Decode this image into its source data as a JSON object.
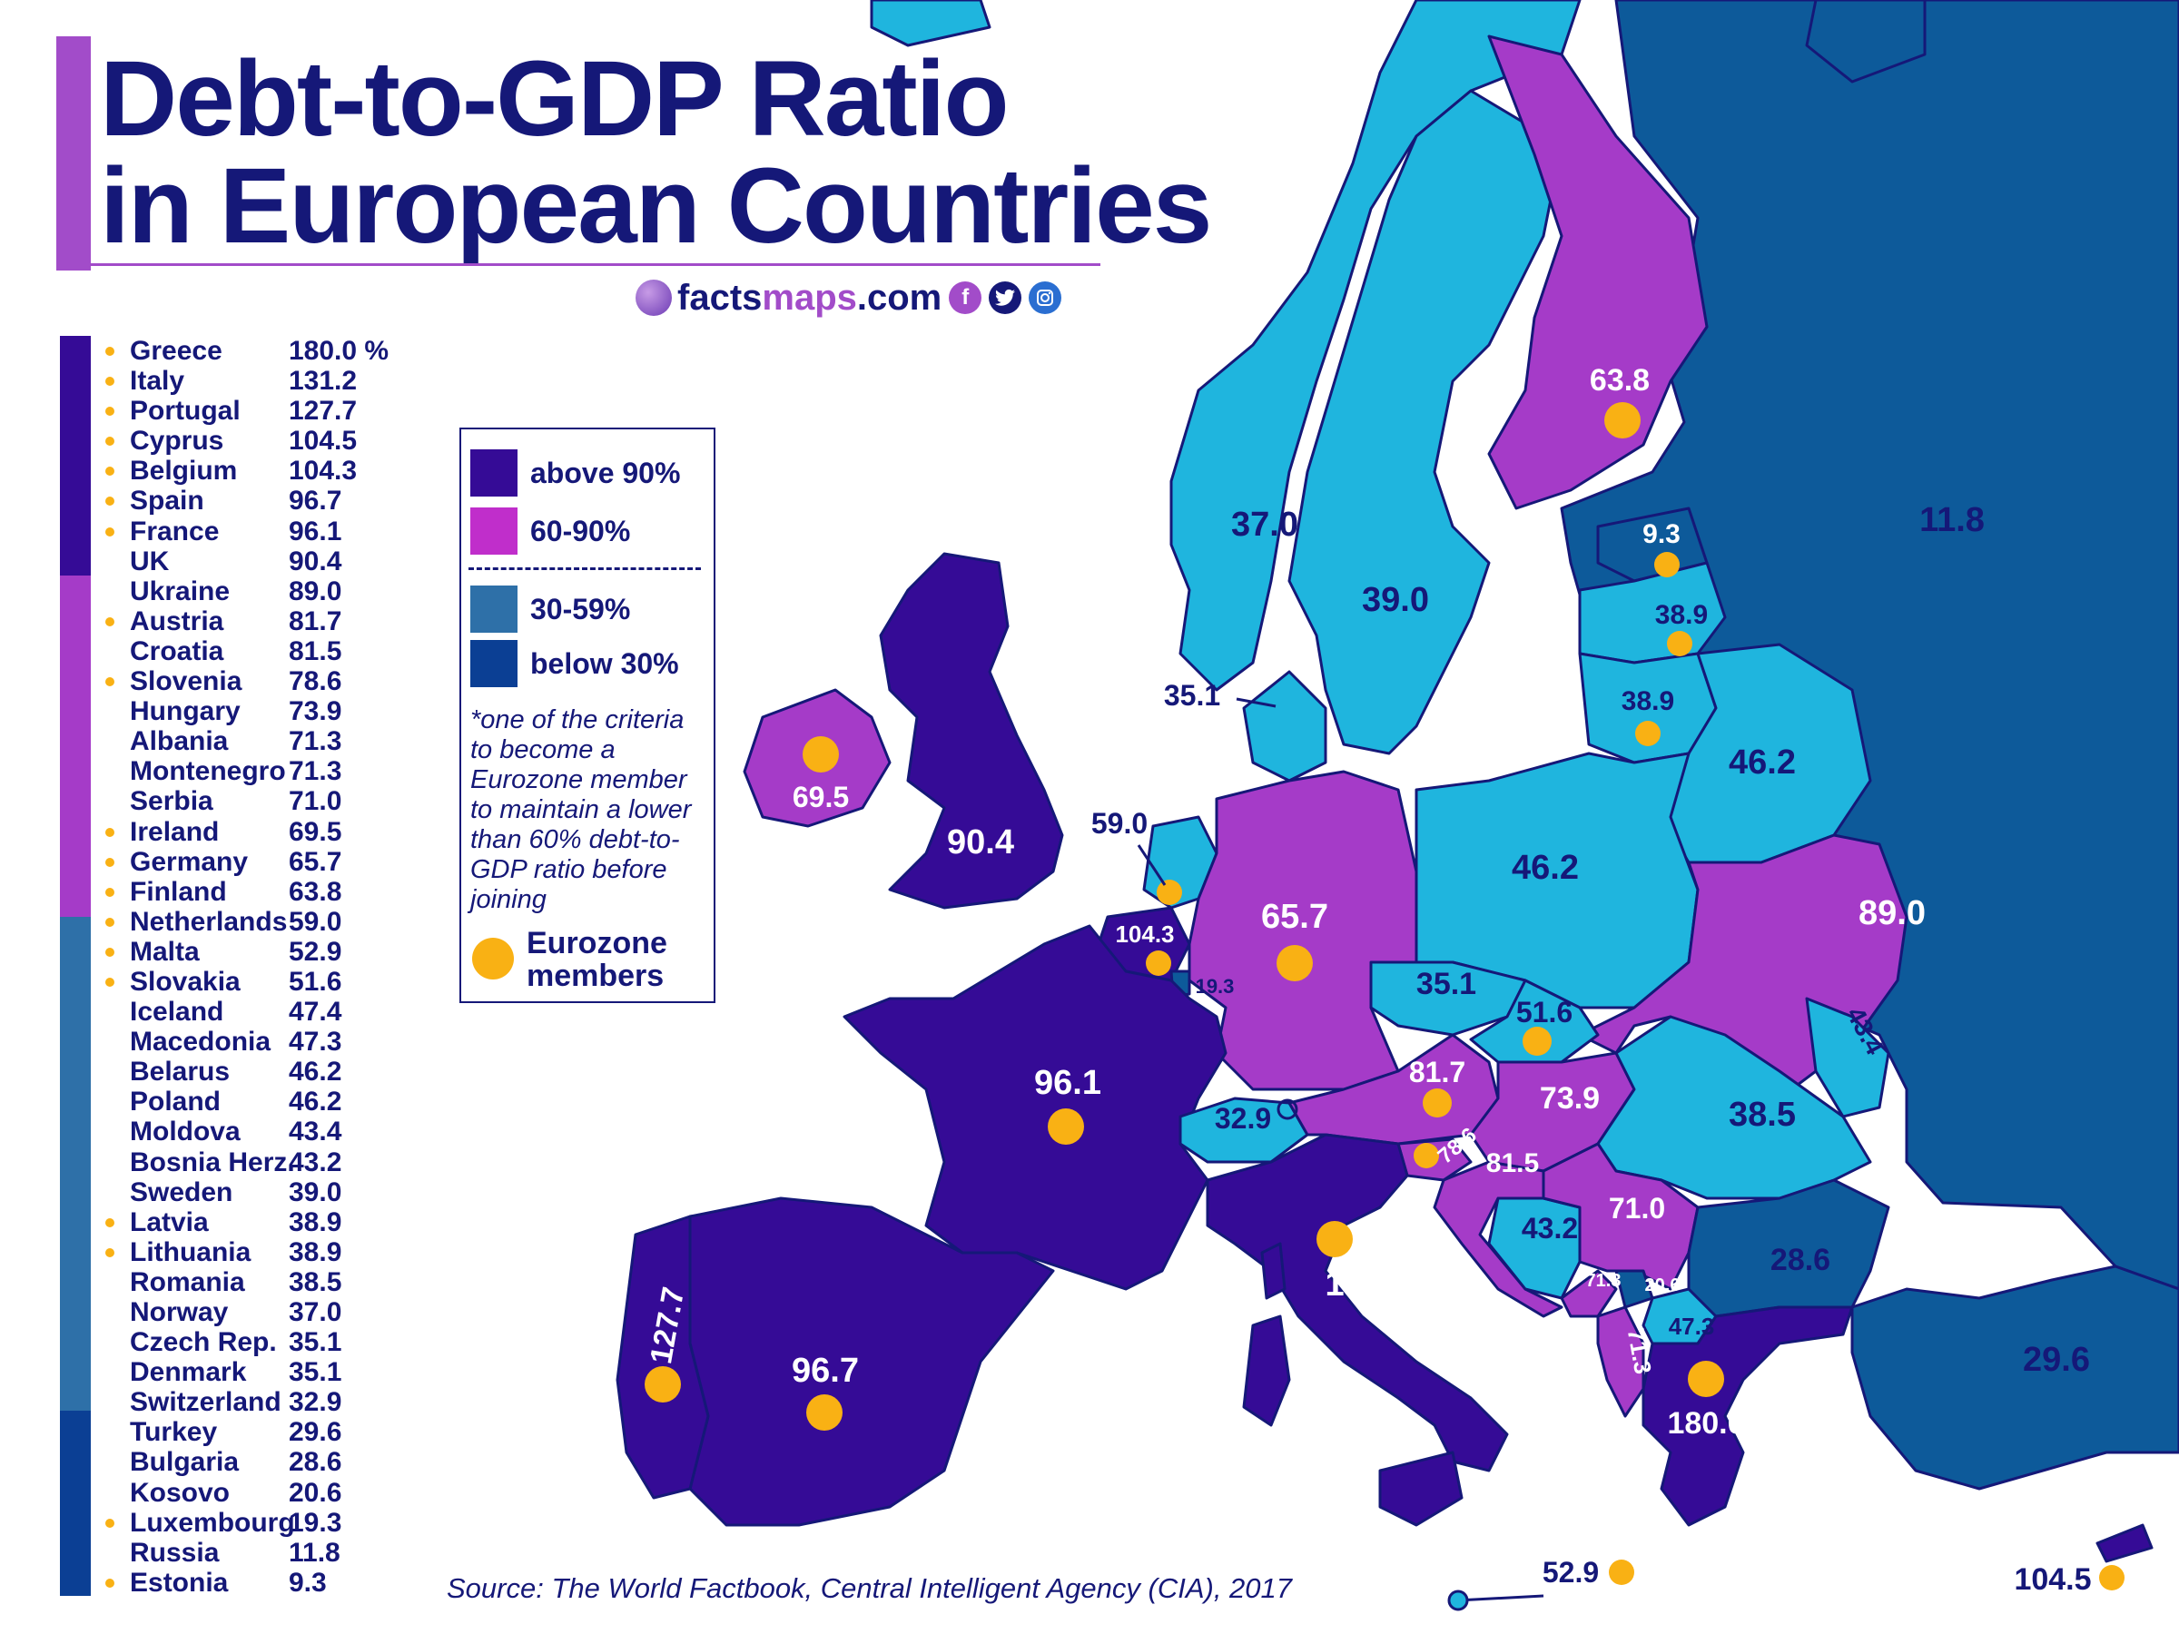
{
  "title": {
    "line1": "Debt-to-GDP Ratio",
    "line2": "in European Countries"
  },
  "brand": {
    "part1": "facts",
    "part2": "maps",
    "part3": ".com",
    "icons": [
      "globe-icon",
      "facebook-icon",
      "twitter-icon",
      "instagram-icon"
    ]
  },
  "colors": {
    "above_90": "#350b96",
    "range_60_90": "#a53bc8",
    "range_30_59": "#1fb5de",
    "below_30": "#0d5a9a",
    "eurozone": "#f9b114",
    "text": "#151878",
    "accent": "#a24cc9"
  },
  "ranking": [
    {
      "country": "Greece",
      "value": "180.0 %",
      "eurozone": true
    },
    {
      "country": "Italy",
      "value": "131.2",
      "eurozone": true
    },
    {
      "country": "Portugal",
      "value": "127.7",
      "eurozone": true
    },
    {
      "country": "Cyprus",
      "value": "104.5",
      "eurozone": true
    },
    {
      "country": "Belgium",
      "value": "104.3",
      "eurozone": true
    },
    {
      "country": "Spain",
      "value": "96.7",
      "eurozone": true
    },
    {
      "country": "France",
      "value": "96.1",
      "eurozone": true
    },
    {
      "country": "UK",
      "value": "90.4",
      "eurozone": false
    },
    {
      "country": "Ukraine",
      "value": "89.0",
      "eurozone": false
    },
    {
      "country": "Austria",
      "value": "81.7",
      "eurozone": true
    },
    {
      "country": "Croatia",
      "value": "81.5",
      "eurozone": false
    },
    {
      "country": "Slovenia",
      "value": "78.6",
      "eurozone": true
    },
    {
      "country": "Hungary",
      "value": "73.9",
      "eurozone": false
    },
    {
      "country": "Albania",
      "value": "71.3",
      "eurozone": false
    },
    {
      "country": "Montenegro",
      "value": "71.3",
      "eurozone": false
    },
    {
      "country": "Serbia",
      "value": "71.0",
      "eurozone": false
    },
    {
      "country": "Ireland",
      "value": "69.5",
      "eurozone": true
    },
    {
      "country": "Germany",
      "value": "65.7",
      "eurozone": true
    },
    {
      "country": "Finland",
      "value": "63.8",
      "eurozone": true
    },
    {
      "country": "Netherlands",
      "value": "59.0",
      "eurozone": true
    },
    {
      "country": "Malta",
      "value": "52.9",
      "eurozone": true
    },
    {
      "country": "Slovakia",
      "value": "51.6",
      "eurozone": true
    },
    {
      "country": "Iceland",
      "value": "47.4",
      "eurozone": false
    },
    {
      "country": "Macedonia",
      "value": "47.3",
      "eurozone": false
    },
    {
      "country": "Belarus",
      "value": "46.2",
      "eurozone": false
    },
    {
      "country": "Poland",
      "value": "46.2",
      "eurozone": false
    },
    {
      "country": "Moldova",
      "value": "43.4",
      "eurozone": false
    },
    {
      "country": "Bosnia Herz.",
      "value": "43.2",
      "eurozone": false
    },
    {
      "country": "Sweden",
      "value": "39.0",
      "eurozone": false
    },
    {
      "country": "Latvia",
      "value": "38.9",
      "eurozone": true
    },
    {
      "country": "Lithuania",
      "value": "38.9",
      "eurozone": true
    },
    {
      "country": "Romania",
      "value": "38.5",
      "eurozone": false
    },
    {
      "country": "Norway",
      "value": "37.0",
      "eurozone": false
    },
    {
      "country": "Czech Rep.",
      "value": "35.1",
      "eurozone": false
    },
    {
      "country": "Denmark",
      "value": "35.1",
      "eurozone": false
    },
    {
      "country": "Switzerland",
      "value": "32.9",
      "eurozone": false
    },
    {
      "country": "Turkey",
      "value": "29.6",
      "eurozone": false
    },
    {
      "country": "Bulgaria",
      "value": "28.6",
      "eurozone": false
    },
    {
      "country": "Kosovo",
      "value": "20.6",
      "eurozone": false
    },
    {
      "country": "Luxembourg",
      "value": "19.3",
      "eurozone": true
    },
    {
      "country": "Russia",
      "value": "11.8",
      "eurozone": false
    },
    {
      "country": "Estonia",
      "value": "9.3",
      "eurozone": true
    }
  ],
  "legend": {
    "above_90": "above 90%",
    "range_60_90": "60-90%",
    "range_30_59": "30-59%",
    "below_30": "below 30%",
    "note": "*one of the criteria to become a Eurozone member to maintain a lower than 60% debt-to-GDP ratio before joining",
    "eurozone_line1": "Eurozone",
    "eurozone_line2": "members"
  },
  "map_labels": {
    "finland": "63.8",
    "russia": "11.8",
    "norway": "37.0",
    "sweden": "39.0",
    "estonia": "9.3",
    "latvia": "38.9",
    "lithuania": "38.9",
    "belarus": "46.2",
    "denmark": "35.1",
    "ireland": "69.5",
    "uk": "90.4",
    "netherlands": "59.0",
    "belgium": "104.3",
    "luxembourg": "19.3",
    "germany": "65.7",
    "poland": "46.2",
    "ukraine": "89.0",
    "czech": "35.1",
    "slovakia": "51.6",
    "moldova": "43.4",
    "france": "96.1",
    "switzerland": "32.9",
    "austria": "81.7",
    "hungary": "73.9",
    "romania": "38.5",
    "slovenia": "78.6",
    "croatia": "81.5",
    "bosnia": "43.2",
    "serbia": "71.0",
    "montenegro": "71.3",
    "kosovo": "20.6",
    "albania": "71.3",
    "macedonia": "47.3",
    "bulgaria": "28.6",
    "italy": "131.2",
    "portugal": "127.7",
    "spain": "96.7",
    "greece": "180.0",
    "turkey": "29.6",
    "malta": "52.9",
    "cyprus": "104.5"
  },
  "source": "Source: The World Factbook, Central Intelligent Agency (CIA), 2017"
}
